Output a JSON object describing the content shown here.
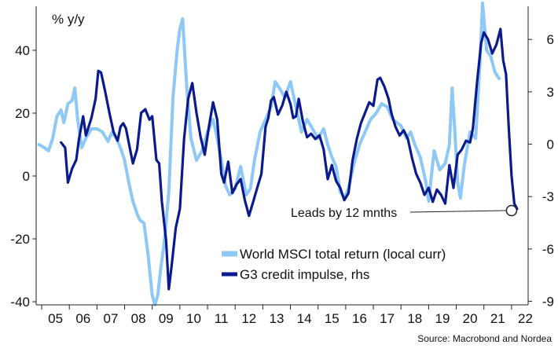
{
  "chart_data": {
    "type": "line",
    "unit_label": "% y/y",
    "source": "Source: Macrobond and Nordea",
    "annotation": "Leads by 12 mnths",
    "annotation_point": {
      "x": 2022.0,
      "y_right": -3.8
    },
    "x_tick_labels": [
      "05",
      "06",
      "07",
      "08",
      "09",
      "10",
      "11",
      "12",
      "13",
      "14",
      "15",
      "16",
      "17",
      "18",
      "19",
      "20",
      "21",
      "22"
    ],
    "x_range": [
      2004.8,
      2022.6
    ],
    "left_axis": {
      "ylim": [
        -41,
        54
      ],
      "ticks": [
        -40,
        -20,
        0,
        20,
        40
      ],
      "tick_labels": [
        "-40",
        "-20",
        "0",
        "20",
        "40"
      ]
    },
    "right_axis": {
      "ylim": [
        -9.2,
        7.9
      ],
      "ticks": [
        -9,
        -6,
        -3,
        0,
        3,
        6
      ],
      "tick_labels": [
        "-9",
        "-6",
        "-3",
        "0",
        "3",
        "6"
      ]
    },
    "colors": {
      "light": "#8ec8f6",
      "dark": "#0b1a8c",
      "axis": "#222222"
    },
    "series": [
      {
        "name": "World MSCI total return (local curr)",
        "axis": "left",
        "color": "#8ec8f6",
        "points": [
          [
            2004.9,
            10
          ],
          [
            2005.1,
            9
          ],
          [
            2005.25,
            8
          ],
          [
            2005.4,
            12
          ],
          [
            2005.55,
            19
          ],
          [
            2005.7,
            21
          ],
          [
            2005.8,
            17
          ],
          [
            2005.95,
            23
          ],
          [
            2006.1,
            24
          ],
          [
            2006.2,
            28
          ],
          [
            2006.3,
            18
          ],
          [
            2006.45,
            9
          ],
          [
            2006.6,
            12
          ],
          [
            2006.8,
            15
          ],
          [
            2007.0,
            15
          ],
          [
            2007.2,
            14
          ],
          [
            2007.4,
            11
          ],
          [
            2007.55,
            14
          ],
          [
            2007.7,
            12
          ],
          [
            2007.85,
            9
          ],
          [
            2008.0,
            5
          ],
          [
            2008.15,
            -2
          ],
          [
            2008.3,
            -8
          ],
          [
            2008.45,
            -12
          ],
          [
            2008.55,
            -14
          ],
          [
            2008.7,
            -15
          ],
          [
            2008.85,
            -25
          ],
          [
            2009.0,
            -38
          ],
          [
            2009.1,
            -41
          ],
          [
            2009.2,
            -38
          ],
          [
            2009.3,
            -30
          ],
          [
            2009.45,
            -20
          ],
          [
            2009.6,
            -5
          ],
          [
            2009.75,
            25
          ],
          [
            2009.9,
            40
          ],
          [
            2010.0,
            47
          ],
          [
            2010.1,
            50
          ],
          [
            2010.25,
            28
          ],
          [
            2010.4,
            12
          ],
          [
            2010.6,
            5
          ],
          [
            2010.8,
            8
          ],
          [
            2011.0,
            14
          ],
          [
            2011.2,
            18
          ],
          [
            2011.35,
            12
          ],
          [
            2011.5,
            5
          ],
          [
            2011.65,
            -3
          ],
          [
            2011.8,
            -6
          ],
          [
            2012.0,
            -4
          ],
          [
            2012.2,
            3
          ],
          [
            2012.4,
            -6
          ],
          [
            2012.55,
            -4
          ],
          [
            2012.7,
            5
          ],
          [
            2012.9,
            14
          ],
          [
            2013.1,
            18
          ],
          [
            2013.3,
            22
          ],
          [
            2013.45,
            30
          ],
          [
            2013.6,
            28
          ],
          [
            2013.8,
            25
          ],
          [
            2014.0,
            30
          ],
          [
            2014.2,
            22
          ],
          [
            2014.4,
            14
          ],
          [
            2014.6,
            18
          ],
          [
            2014.8,
            15
          ],
          [
            2015.0,
            12
          ],
          [
            2015.2,
            15
          ],
          [
            2015.35,
            10
          ],
          [
            2015.5,
            6
          ],
          [
            2015.65,
            3
          ],
          [
            2015.8,
            -5
          ],
          [
            2015.95,
            -7
          ],
          [
            2016.1,
            -4
          ],
          [
            2016.3,
            4
          ],
          [
            2016.5,
            10
          ],
          [
            2016.7,
            14
          ],
          [
            2016.9,
            18
          ],
          [
            2017.1,
            20
          ],
          [
            2017.3,
            23
          ],
          [
            2017.5,
            22
          ],
          [
            2017.7,
            18
          ],
          [
            2018.0,
            16
          ],
          [
            2018.2,
            12
          ],
          [
            2018.35,
            14
          ],
          [
            2018.5,
            10
          ],
          [
            2018.7,
            6
          ],
          [
            2018.9,
            -2
          ],
          [
            2019.0,
            -8
          ],
          [
            2019.2,
            8
          ],
          [
            2019.4,
            2
          ],
          [
            2019.6,
            4
          ],
          [
            2019.75,
            10
          ],
          [
            2019.85,
            28
          ],
          [
            2019.95,
            14
          ],
          [
            2020.05,
            -2
          ],
          [
            2020.15,
            -7
          ],
          [
            2020.3,
            4
          ],
          [
            2020.5,
            14
          ],
          [
            2020.7,
            12
          ],
          [
            2020.85,
            35
          ],
          [
            2020.95,
            55
          ],
          [
            2021.1,
            40
          ],
          [
            2021.25,
            38
          ],
          [
            2021.4,
            33
          ],
          [
            2021.55,
            31
          ]
        ]
      },
      {
        "name": "G3 credit impulse, rhs",
        "axis": "right",
        "color": "#0b1a8c",
        "points": [
          [
            2005.7,
            0.1
          ],
          [
            2005.85,
            -0.2
          ],
          [
            2005.95,
            -2.2
          ],
          [
            2006.1,
            -1.4
          ],
          [
            2006.25,
            -0.9
          ],
          [
            2006.35,
            0.3
          ],
          [
            2006.5,
            1.6
          ],
          [
            2006.6,
            0.5
          ],
          [
            2006.8,
            1.5
          ],
          [
            2006.95,
            2.6
          ],
          [
            2007.05,
            4.2
          ],
          [
            2007.15,
            4.1
          ],
          [
            2007.3,
            3.0
          ],
          [
            2007.45,
            1.8
          ],
          [
            2007.6,
            0.7
          ],
          [
            2007.75,
            0.2
          ],
          [
            2007.85,
            1.0
          ],
          [
            2007.95,
            1.2
          ],
          [
            2008.05,
            0.9
          ],
          [
            2008.15,
            0.1
          ],
          [
            2008.3,
            -1.1
          ],
          [
            2008.45,
            -0.3
          ],
          [
            2008.6,
            1.8
          ],
          [
            2008.75,
            2.0
          ],
          [
            2008.9,
            1.4
          ],
          [
            2009.0,
            1.6
          ],
          [
            2009.15,
            -0.9
          ],
          [
            2009.25,
            -1.1
          ],
          [
            2009.35,
            -3.3
          ],
          [
            2009.5,
            -5.5
          ],
          [
            2009.6,
            -8.3
          ],
          [
            2009.7,
            -7.0
          ],
          [
            2009.85,
            -4.8
          ],
          [
            2010.0,
            -3.7
          ],
          [
            2010.15,
            0.3
          ],
          [
            2010.3,
            2.6
          ],
          [
            2010.45,
            3.5
          ],
          [
            2010.6,
            1.8
          ],
          [
            2010.75,
            0.4
          ],
          [
            2010.9,
            -0.6
          ],
          [
            2011.05,
            1.0
          ],
          [
            2011.2,
            2.4
          ],
          [
            2011.35,
            1.4
          ],
          [
            2011.5,
            -1.7
          ],
          [
            2011.6,
            -2.2
          ],
          [
            2011.75,
            -1.0
          ],
          [
            2011.9,
            -2.8
          ],
          [
            2012.05,
            -2.3
          ],
          [
            2012.2,
            -2.0
          ],
          [
            2012.35,
            -3.2
          ],
          [
            2012.5,
            -4.1
          ],
          [
            2012.65,
            -3.3
          ],
          [
            2012.8,
            -2.5
          ],
          [
            2012.95,
            -1.7
          ],
          [
            2013.1,
            1.0
          ],
          [
            2013.2,
            1.5
          ],
          [
            2013.3,
            2.5
          ],
          [
            2013.4,
            2.7
          ],
          [
            2013.55,
            1.7
          ],
          [
            2013.7,
            2.2
          ],
          [
            2013.85,
            3.0
          ],
          [
            2014.0,
            2.3
          ],
          [
            2014.1,
            1.5
          ],
          [
            2014.2,
            1.6
          ],
          [
            2014.3,
            2.6
          ],
          [
            2014.45,
            1.3
          ],
          [
            2014.6,
            0.4
          ],
          [
            2014.75,
            0.6
          ],
          [
            2014.9,
            0.3
          ],
          [
            2015.05,
            0.5
          ],
          [
            2015.2,
            -0.3
          ],
          [
            2015.35,
            -2.0
          ],
          [
            2015.5,
            -1.2
          ],
          [
            2015.65,
            -2.1
          ],
          [
            2015.8,
            -2.5
          ],
          [
            2015.95,
            -3.2
          ],
          [
            2016.1,
            -2.8
          ],
          [
            2016.25,
            -0.9
          ],
          [
            2016.4,
            0.3
          ],
          [
            2016.55,
            1.2
          ],
          [
            2016.7,
            1.8
          ],
          [
            2016.85,
            2.4
          ],
          [
            2017.0,
            2.2
          ],
          [
            2017.15,
            3.7
          ],
          [
            2017.25,
            3.8
          ],
          [
            2017.4,
            3.3
          ],
          [
            2017.55,
            2.6
          ],
          [
            2017.65,
            1.8
          ],
          [
            2017.8,
            1.0
          ],
          [
            2017.95,
            0.5
          ],
          [
            2018.1,
            0.8
          ],
          [
            2018.25,
            0.3
          ],
          [
            2018.4,
            -0.8
          ],
          [
            2018.55,
            -1.7
          ],
          [
            2018.7,
            -2.2
          ],
          [
            2018.85,
            -2.9
          ],
          [
            2019.0,
            -2.5
          ],
          [
            2019.15,
            -3.3
          ],
          [
            2019.3,
            -2.6
          ],
          [
            2019.45,
            -2.9
          ],
          [
            2019.6,
            -3.4
          ],
          [
            2019.75,
            -1.2
          ],
          [
            2019.9,
            -2.5
          ],
          [
            2020.05,
            -0.6
          ],
          [
            2020.2,
            -0.3
          ],
          [
            2020.35,
            0.2
          ],
          [
            2020.5,
            0.1
          ],
          [
            2020.6,
            0.9
          ],
          [
            2020.75,
            3.5
          ],
          [
            2020.9,
            5.8
          ],
          [
            2021.0,
            6.4
          ],
          [
            2021.15,
            6.0
          ],
          [
            2021.3,
            5.2
          ],
          [
            2021.45,
            5.7
          ],
          [
            2021.6,
            6.6
          ],
          [
            2021.7,
            4.8
          ],
          [
            2021.8,
            4.0
          ],
          [
            2021.9,
            0.9
          ],
          [
            2022.0,
            -1.8
          ],
          [
            2022.1,
            -3.4
          ],
          [
            2022.2,
            -3.7
          ]
        ]
      }
    ]
  }
}
